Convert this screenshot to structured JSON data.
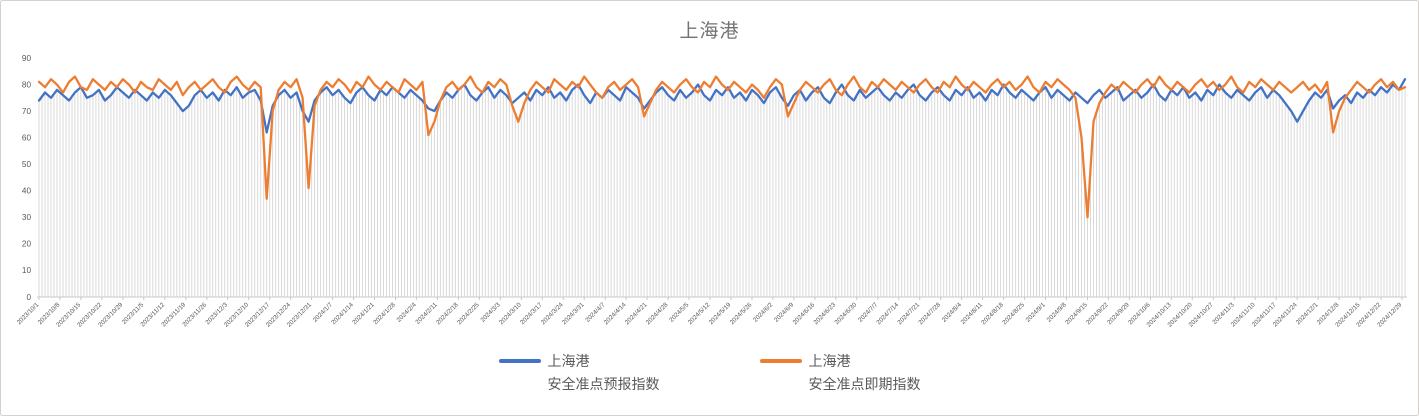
{
  "window": {
    "background": "#ffffff",
    "border_color": "#d4d1ce"
  },
  "chart": {
    "title_color": "#737373",
    "axis_label_color": "#595959",
    "dropline_color": "#d9d9d9",
    "axis_line_color": "#c8c8c8"
  },
  "legend": {
    "position": "bottom-center",
    "items": [
      {
        "label_line1": "上海港",
        "label_line2": "安全准点预报指数",
        "color": "#4472C4"
      },
      {
        "label_line1": "上海港",
        "label_line2": "安全准点即期指数",
        "color": "#ED7D31"
      }
    ]
  },
  "chart_data": {
    "type": "line",
    "title": "上海港",
    "xlabel": "",
    "ylabel": "",
    "ylim": [
      0,
      90
    ],
    "y_ticks": [
      0,
      10,
      20,
      30,
      40,
      50,
      60,
      70,
      80,
      90
    ],
    "grid": "vertical droplines from each daily point, no horizontal gridlines",
    "legend_position": "bottom",
    "x_unit": "date",
    "x_start": "2023/10/1",
    "x_end": "2024/12/30",
    "x_tick_interval_days": 7,
    "point_interval_days": 2,
    "x_tick_labels": [
      "2023/10/1",
      "2023/10/8",
      "2023/10/15",
      "2023/10/22",
      "2023/10/29",
      "2023/11/5",
      "2023/11/12",
      "2023/11/19",
      "2023/11/26",
      "2023/12/3",
      "2023/12/10",
      "2023/12/17",
      "2023/12/24",
      "2023/12/31",
      "2024/1/7",
      "2024/1/14",
      "2024/1/21",
      "2024/1/28",
      "2024/2/4",
      "2024/2/11",
      "2024/2/18",
      "2024/2/25",
      "2024/3/3",
      "2024/3/10",
      "2024/3/17",
      "2024/3/24",
      "2024/3/31",
      "2024/4/7",
      "2024/4/14",
      "2024/4/21",
      "2024/4/28",
      "2024/5/5",
      "2024/5/12",
      "2024/5/19",
      "2024/5/26",
      "2024/6/2",
      "2024/6/9",
      "2024/6/16",
      "2024/6/23",
      "2024/6/30",
      "2024/7/7",
      "2024/7/14",
      "2024/7/21",
      "2024/7/28",
      "2024/8/4",
      "2024/8/11",
      "2024/8/18",
      "2024/8/25",
      "2024/9/1",
      "2024/9/8",
      "2024/9/15",
      "2024/9/22",
      "2024/9/29",
      "2024/10/6",
      "2024/10/13",
      "2024/10/20",
      "2024/10/27",
      "2024/11/3",
      "2024/11/10",
      "2024/11/17",
      "2024/11/24",
      "2024/12/1",
      "2024/12/8",
      "2024/12/15",
      "2024/12/22",
      "2024/12/29"
    ],
    "series": [
      {
        "name": "上海港 安全准点预报指数",
        "color": "#4472C4",
        "values": [
          74,
          77,
          75,
          78,
          76,
          74,
          77,
          79,
          75,
          76,
          78,
          74,
          76,
          79,
          77,
          75,
          78,
          76,
          74,
          77,
          75,
          78,
          76,
          73,
          70,
          72,
          76,
          78,
          75,
          77,
          74,
          78,
          76,
          79,
          75,
          77,
          78,
          74,
          62,
          72,
          76,
          78,
          75,
          77,
          70,
          66,
          74,
          77,
          79,
          76,
          78,
          75,
          73,
          77,
          79,
          76,
          74,
          78,
          76,
          79,
          77,
          75,
          78,
          76,
          74,
          71,
          70,
          74,
          77,
          75,
          78,
          80,
          76,
          74,
          77,
          79,
          75,
          78,
          76,
          73,
          75,
          77,
          74,
          78,
          76,
          79,
          75,
          77,
          74,
          78,
          80,
          76,
          73,
          77,
          75,
          78,
          76,
          74,
          79,
          77,
          75,
          71,
          74,
          77,
          79,
          76,
          74,
          78,
          75,
          77,
          80,
          76,
          74,
          78,
          76,
          79,
          75,
          77,
          74,
          78,
          76,
          73,
          77,
          79,
          75,
          72,
          76,
          78,
          74,
          77,
          79,
          75,
          73,
          77,
          80,
          76,
          74,
          78,
          75,
          77,
          79,
          76,
          74,
          77,
          75,
          78,
          80,
          76,
          74,
          77,
          79,
          76,
          74,
          78,
          76,
          79,
          75,
          77,
          74,
          78,
          76,
          80,
          77,
          75,
          78,
          76,
          74,
          77,
          79,
          75,
          78,
          76,
          74,
          77,
          75,
          73,
          76,
          78,
          75,
          77,
          79,
          74,
          76,
          78,
          75,
          77,
          80,
          76,
          74,
          78,
          76,
          79,
          75,
          77,
          74,
          78,
          76,
          80,
          77,
          75,
          78,
          76,
          74,
          77,
          79,
          75,
          78,
          76,
          73,
          70,
          66,
          70,
          74,
          77,
          75,
          78,
          71,
          74,
          76,
          73,
          77,
          75,
          78,
          76,
          79,
          77,
          80,
          78,
          82
        ]
      },
      {
        "name": "上海港 安全准点即期指数",
        "color": "#ED7D31",
        "values": [
          81,
          79,
          82,
          80,
          77,
          81,
          83,
          79,
          78,
          82,
          80,
          78,
          81,
          79,
          82,
          80,
          77,
          81,
          79,
          78,
          82,
          80,
          78,
          81,
          76,
          79,
          81,
          78,
          80,
          82,
          79,
          77,
          81,
          83,
          80,
          78,
          81,
          79,
          37,
          70,
          78,
          81,
          79,
          82,
          75,
          41,
          72,
          78,
          81,
          79,
          82,
          80,
          77,
          81,
          79,
          83,
          80,
          78,
          81,
          79,
          77,
          82,
          80,
          78,
          81,
          61,
          66,
          74,
          79,
          81,
          78,
          80,
          83,
          79,
          77,
          81,
          79,
          82,
          80,
          72,
          66,
          73,
          78,
          81,
          79,
          77,
          82,
          80,
          78,
          81,
          79,
          83,
          80,
          77,
          75,
          79,
          81,
          78,
          80,
          82,
          79,
          68,
          73,
          78,
          81,
          79,
          77,
          80,
          82,
          79,
          77,
          81,
          79,
          83,
          80,
          78,
          81,
          79,
          77,
          80,
          78,
          75,
          79,
          82,
          80,
          68,
          73,
          78,
          81,
          79,
          77,
          80,
          82,
          78,
          76,
          80,
          83,
          79,
          77,
          81,
          79,
          82,
          80,
          78,
          81,
          79,
          77,
          80,
          82,
          79,
          77,
          81,
          79,
          83,
          80,
          78,
          81,
          79,
          77,
          80,
          82,
          79,
          81,
          78,
          80,
          83,
          79,
          77,
          81,
          79,
          82,
          80,
          78,
          75,
          60,
          30,
          66,
          73,
          77,
          80,
          78,
          81,
          79,
          77,
          80,
          82,
          79,
          83,
          80,
          78,
          81,
          79,
          77,
          80,
          82,
          79,
          81,
          78,
          80,
          83,
          79,
          77,
          81,
          79,
          82,
          80,
          78,
          81,
          79,
          77,
          79,
          81,
          78,
          80,
          77,
          81,
          62,
          70,
          75,
          78,
          81,
          79,
          77,
          80,
          82,
          79,
          81,
          78,
          79
        ]
      }
    ]
  }
}
